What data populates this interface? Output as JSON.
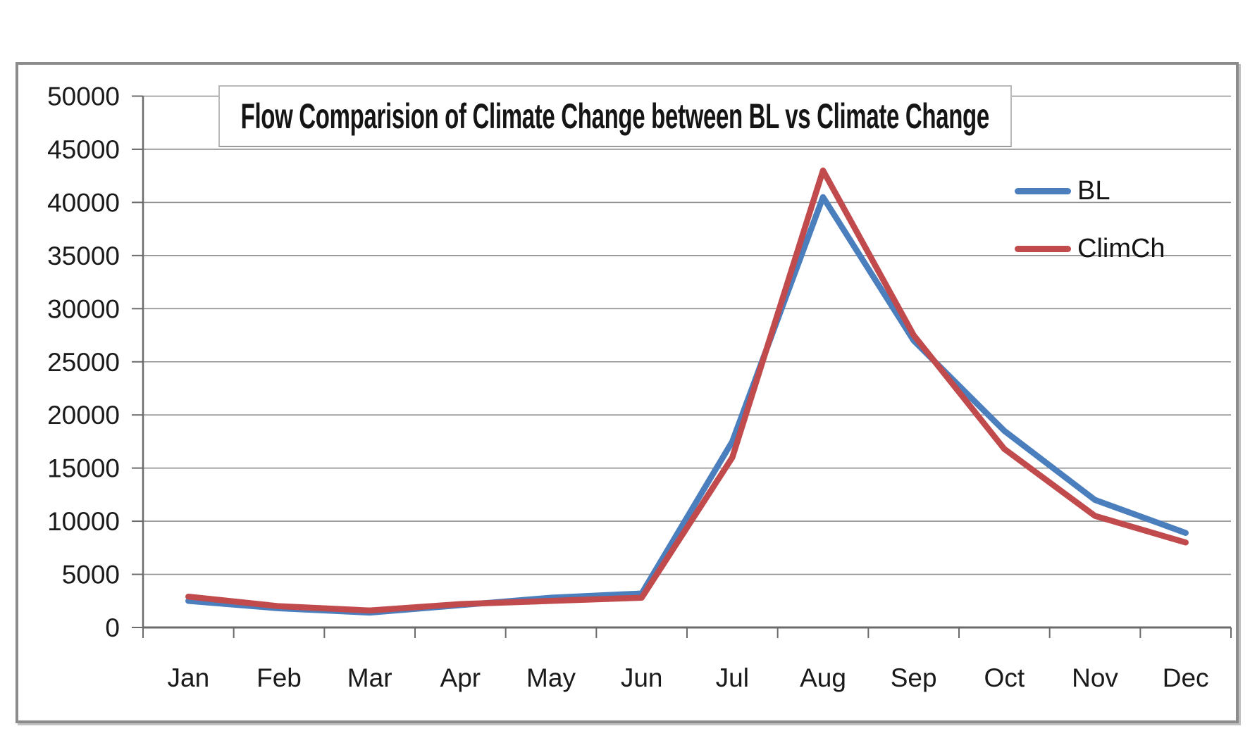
{
  "chart_data": {
    "type": "line",
    "title": "Flow Comparision of Climate Change between BL vs Climate Change",
    "categories": [
      "Jan",
      "Feb",
      "Mar",
      "Apr",
      "May",
      "Jun",
      "Jul",
      "Aug",
      "Sep",
      "Oct",
      "Nov",
      "Dec"
    ],
    "series": [
      {
        "name": "BL",
        "color": "#4A7EBD",
        "values": [
          2500,
          1800,
          1400,
          2100,
          2800,
          3200,
          17500,
          40500,
          27000,
          18500,
          12000,
          8900
        ]
      },
      {
        "name": "ClimCh",
        "color": "#C14A4C",
        "values": [
          2900,
          2000,
          1600,
          2200,
          2500,
          2800,
          16000,
          43000,
          27500,
          16800,
          10500,
          8000
        ]
      }
    ],
    "xlabel": "",
    "ylabel": "",
    "ylim": [
      0,
      50000
    ],
    "ytick_step": 5000,
    "yticks": [
      "0",
      "5000",
      "10000",
      "15000",
      "20000",
      "25000",
      "30000",
      "35000",
      "40000",
      "45000",
      "50000"
    ],
    "grid": true,
    "legend_position": "top-right",
    "grid_color": "#8f8f8f",
    "axis_color": "#6b6b6b",
    "tick_color": "#6b6b6b",
    "label_color": "#1a1a1a",
    "frame_border_color": "#8c8c8c",
    "title_box_border_color": "#b9b9b9",
    "plot_background": "#ffffff",
    "line_width": 8.5
  }
}
